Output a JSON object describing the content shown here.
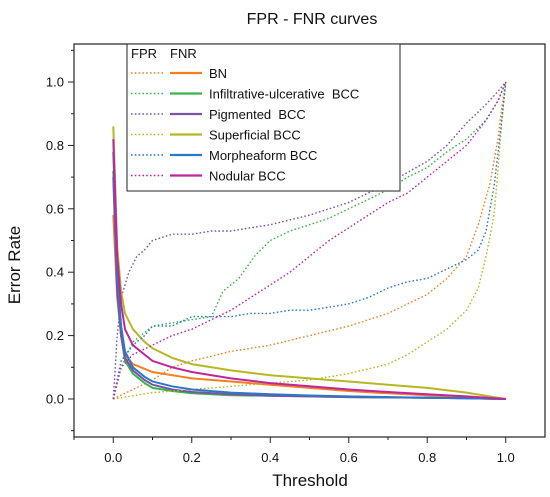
{
  "chart_data": {
    "type": "line",
    "title": "FPR - FNR curves",
    "xlabel": "Threshold",
    "ylabel": "Error Rate",
    "xlim": [
      -0.1,
      1.1
    ],
    "ylim": [
      -0.12,
      1.12
    ],
    "x_ticks": [
      0.0,
      0.2,
      0.4,
      0.6,
      0.8,
      1.0
    ],
    "y_ticks": [
      0.0,
      0.2,
      0.4,
      0.6,
      0.8,
      1.0
    ],
    "x_tick_labels": [
      "0.0",
      "0.2",
      "0.4",
      "0.6",
      "0.8",
      "1.0"
    ],
    "y_tick_labels": [
      "0.0",
      "0.2",
      "0.4",
      "0.6",
      "0.8",
      "1.0"
    ],
    "grid": false,
    "legend": {
      "placement": "top-left",
      "header_fpr": "FPR",
      "header_fnr": "FNR",
      "fpr_style": "dotted",
      "fnr_style": "solid"
    },
    "series": [
      {
        "name": "BN",
        "color": "#f47f22",
        "fpr": {
          "x": [
            0.0,
            0.05,
            0.1,
            0.15,
            0.2,
            0.3,
            0.4,
            0.5,
            0.6,
            0.7,
            0.8,
            0.85,
            0.9,
            0.93,
            0.96,
            0.98,
            0.99,
            1.0
          ],
          "y": [
            0.0,
            0.03,
            0.06,
            0.1,
            0.12,
            0.15,
            0.17,
            0.2,
            0.23,
            0.27,
            0.33,
            0.38,
            0.45,
            0.55,
            0.68,
            0.82,
            0.92,
            1.0
          ]
        },
        "fnr": {
          "x": [
            0.0,
            0.01,
            0.02,
            0.03,
            0.05,
            0.1,
            0.15,
            0.2,
            0.3,
            0.4,
            0.5,
            0.6,
            0.7,
            0.8,
            0.9,
            1.0
          ],
          "y": [
            0.58,
            0.32,
            0.2,
            0.14,
            0.11,
            0.085,
            0.075,
            0.065,
            0.055,
            0.045,
            0.035,
            0.025,
            0.018,
            0.012,
            0.006,
            0.0
          ]
        }
      },
      {
        "name": "Infiltrative-ulcerative  BCC",
        "color": "#39b54a",
        "fpr": {
          "x": [
            0.0,
            0.02,
            0.05,
            0.1,
            0.15,
            0.2,
            0.25,
            0.28,
            0.32,
            0.36,
            0.4,
            0.45,
            0.5,
            0.55,
            0.6,
            0.65,
            0.7,
            0.75,
            0.8,
            0.85,
            0.9,
            0.95,
            0.98,
            1.0
          ],
          "y": [
            0.0,
            0.1,
            0.18,
            0.23,
            0.24,
            0.25,
            0.26,
            0.34,
            0.38,
            0.45,
            0.5,
            0.53,
            0.55,
            0.57,
            0.6,
            0.63,
            0.66,
            0.7,
            0.73,
            0.78,
            0.82,
            0.88,
            0.94,
            1.0
          ]
        },
        "fnr": {
          "x": [
            0.0,
            0.01,
            0.02,
            0.03,
            0.05,
            0.08,
            0.1,
            0.15,
            0.2,
            0.3,
            0.4,
            0.5,
            0.6,
            0.7,
            0.8,
            0.9,
            1.0
          ],
          "y": [
            0.72,
            0.35,
            0.2,
            0.12,
            0.08,
            0.05,
            0.035,
            0.025,
            0.018,
            0.012,
            0.01,
            0.008,
            0.006,
            0.005,
            0.004,
            0.002,
            0.0
          ]
        }
      },
      {
        "name": "Pigmented  BCC",
        "color": "#7a54a4",
        "fpr": {
          "x": [
            0.0,
            0.01,
            0.02,
            0.04,
            0.06,
            0.08,
            0.1,
            0.15,
            0.2,
            0.25,
            0.3,
            0.35,
            0.4,
            0.5,
            0.6,
            0.7,
            0.8,
            0.85,
            0.9,
            0.95,
            0.98,
            1.0
          ],
          "y": [
            0.0,
            0.2,
            0.32,
            0.4,
            0.45,
            0.47,
            0.5,
            0.52,
            0.52,
            0.53,
            0.53,
            0.54,
            0.55,
            0.58,
            0.62,
            0.68,
            0.75,
            0.8,
            0.87,
            0.93,
            0.97,
            1.0
          ]
        },
        "fnr": {
          "x": [
            0.0,
            0.01,
            0.02,
            0.03,
            0.05,
            0.08,
            0.1,
            0.15,
            0.2,
            0.3,
            0.4,
            0.5,
            0.6,
            0.7,
            0.8,
            0.9,
            1.0
          ],
          "y": [
            0.7,
            0.34,
            0.2,
            0.13,
            0.09,
            0.06,
            0.045,
            0.03,
            0.022,
            0.015,
            0.01,
            0.008,
            0.006,
            0.005,
            0.004,
            0.002,
            0.0
          ]
        }
      },
      {
        "name": "Superficial BCC",
        "color": "#b5b823",
        "fpr": {
          "x": [
            0.0,
            0.05,
            0.1,
            0.2,
            0.3,
            0.4,
            0.5,
            0.6,
            0.7,
            0.75,
            0.8,
            0.85,
            0.9,
            0.93,
            0.95,
            0.97,
            0.98,
            0.99,
            1.0
          ],
          "y": [
            0.0,
            0.01,
            0.02,
            0.03,
            0.04,
            0.05,
            0.06,
            0.08,
            0.11,
            0.14,
            0.18,
            0.22,
            0.28,
            0.35,
            0.45,
            0.58,
            0.72,
            0.88,
            1.0
          ]
        },
        "fnr": {
          "x": [
            0.0,
            0.01,
            0.02,
            0.03,
            0.05,
            0.08,
            0.1,
            0.15,
            0.2,
            0.3,
            0.4,
            0.5,
            0.6,
            0.7,
            0.8,
            0.9,
            1.0
          ],
          "y": [
            0.86,
            0.48,
            0.34,
            0.27,
            0.22,
            0.18,
            0.16,
            0.13,
            0.11,
            0.09,
            0.075,
            0.065,
            0.055,
            0.045,
            0.035,
            0.02,
            0.0
          ]
        }
      },
      {
        "name": "Morpheaform BCC",
        "color": "#2b77c9",
        "fpr": {
          "x": [
            0.0,
            0.02,
            0.05,
            0.08,
            0.1,
            0.15,
            0.2,
            0.25,
            0.3,
            0.35,
            0.4,
            0.45,
            0.5,
            0.55,
            0.6,
            0.65,
            0.7,
            0.75,
            0.8,
            0.85,
            0.9,
            0.93,
            0.95,
            0.97,
            0.99,
            1.0
          ],
          "y": [
            0.0,
            0.12,
            0.17,
            0.2,
            0.23,
            0.23,
            0.26,
            0.26,
            0.26,
            0.27,
            0.27,
            0.28,
            0.28,
            0.29,
            0.3,
            0.32,
            0.35,
            0.37,
            0.38,
            0.41,
            0.44,
            0.47,
            0.53,
            0.67,
            0.88,
            1.0
          ]
        },
        "fnr": {
          "x": [
            0.0,
            0.01,
            0.02,
            0.03,
            0.05,
            0.08,
            0.1,
            0.15,
            0.2,
            0.3,
            0.4,
            0.5,
            0.6,
            0.7,
            0.8,
            0.9,
            1.0
          ],
          "y": [
            0.78,
            0.4,
            0.23,
            0.15,
            0.1,
            0.07,
            0.055,
            0.04,
            0.03,
            0.02,
            0.015,
            0.011,
            0.008,
            0.006,
            0.004,
            0.002,
            0.0
          ]
        }
      },
      {
        "name": "Nodular BCC",
        "color": "#c0269c",
        "fpr": {
          "x": [
            0.0,
            0.02,
            0.05,
            0.1,
            0.15,
            0.2,
            0.25,
            0.3,
            0.35,
            0.4,
            0.45,
            0.5,
            0.55,
            0.6,
            0.65,
            0.7,
            0.75,
            0.8,
            0.85,
            0.9,
            0.95,
            0.98,
            1.0
          ],
          "y": [
            0.0,
            0.1,
            0.14,
            0.17,
            0.2,
            0.22,
            0.25,
            0.28,
            0.32,
            0.36,
            0.4,
            0.45,
            0.5,
            0.54,
            0.58,
            0.62,
            0.65,
            0.7,
            0.75,
            0.8,
            0.88,
            0.94,
            1.0
          ]
        },
        "fnr": {
          "x": [
            0.0,
            0.01,
            0.02,
            0.03,
            0.05,
            0.08,
            0.1,
            0.15,
            0.2,
            0.3,
            0.4,
            0.5,
            0.6,
            0.7,
            0.8,
            0.9,
            1.0
          ],
          "y": [
            0.82,
            0.45,
            0.3,
            0.22,
            0.17,
            0.14,
            0.12,
            0.1,
            0.085,
            0.065,
            0.05,
            0.04,
            0.03,
            0.022,
            0.015,
            0.008,
            0.0
          ]
        }
      }
    ]
  }
}
